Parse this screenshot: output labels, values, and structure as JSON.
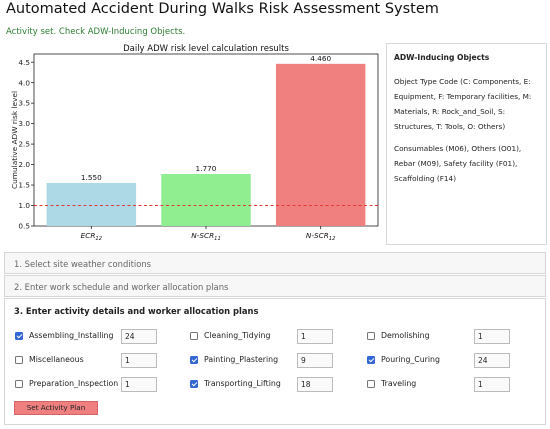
{
  "header": {
    "title": "Automated Accident During Walks Risk Assessment System",
    "status": "Activity set. Check ADW-Inducing Objects."
  },
  "chart_data": {
    "type": "bar",
    "title": "Daily ADW risk level calculation results",
    "ylabel": "Cumulative ADW risk level",
    "xlabel": "",
    "categories": [
      "ECR12",
      "N-SCR11",
      "N-SCR12"
    ],
    "category_labels": [
      {
        "main": "ECR",
        "sub": "12"
      },
      {
        "main": "N-SCR",
        "sub": "11"
      },
      {
        "main": "N-SCR",
        "sub": "12"
      }
    ],
    "values": [
      1.55,
      1.77,
      4.46
    ],
    "value_labels": [
      "1.550",
      "1.770",
      "4.460"
    ],
    "colors": [
      "#add8e6",
      "#90ee90",
      "#f08080"
    ],
    "ylim": [
      0.5,
      4.7
    ],
    "yticks": [
      0.5,
      1.0,
      1.5,
      2.0,
      2.5,
      3.0,
      3.5,
      4.0,
      4.5
    ],
    "ytick_labels": [
      "0.5",
      "1.0",
      "1.5",
      "2.0",
      "2.5",
      "3.0",
      "3.5",
      "4.0",
      "4.5"
    ],
    "threshold": 1.0,
    "threshold_color": "#e53935",
    "grid": false
  },
  "objects_panel": {
    "title": "ADW-Inducing Objects",
    "legend_text": "Object Type Code (C: Components, E: Equipment, F: Temporary facilities, M: Materials, R: Rock_and_Soil, S: Structures, T: Tools, O: Others)",
    "objects_text": "Consumables (M06), Others (O01), Rebar (M09), Safety facility (F01), Scaffolding (F14)"
  },
  "sections": [
    {
      "header": "1. Select site weather conditions"
    },
    {
      "header": "2. Enter work schedule and worker allocation plans"
    },
    {
      "header": "3. Enter activity details and worker allocation plans"
    }
  ],
  "activities": [
    {
      "label": "Assembling_Installing",
      "checked": true,
      "workers": "24"
    },
    {
      "label": "Cleaning_Tidying",
      "checked": false,
      "workers": "1"
    },
    {
      "label": "Demolishing",
      "checked": false,
      "workers": "1"
    },
    {
      "label": "Miscellaneous",
      "checked": false,
      "workers": "1"
    },
    {
      "label": "Painting_Plastering",
      "checked": true,
      "workers": "9"
    },
    {
      "label": "Pouring_Curing",
      "checked": true,
      "workers": "24"
    },
    {
      "label": "Preparation_Inspection",
      "checked": false,
      "workers": "1"
    },
    {
      "label": "Transporting_Lifting",
      "checked": true,
      "workers": "18"
    },
    {
      "label": "Traveling",
      "checked": false,
      "workers": "1"
    }
  ],
  "actions": {
    "set_plan_label": "Set Activity Plan",
    "set_plan_color": "#f08080"
  }
}
